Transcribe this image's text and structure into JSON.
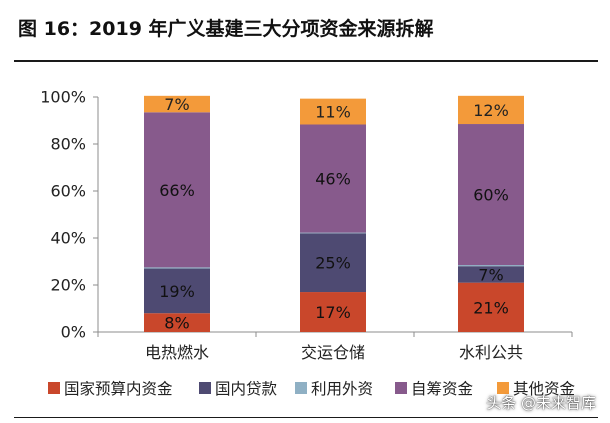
{
  "figure": {
    "title": "图 16：2019 年广义基建三大分项资金来源拆解",
    "watermark": "头条 @未来智库"
  },
  "chart_data": {
    "type": "bar",
    "stacked": true,
    "categories": [
      "电热燃水",
      "交运仓储",
      "水利公共"
    ],
    "series": [
      {
        "name": "国家预算内资金",
        "color": "#C9472B",
        "values": [
          8,
          17,
          21
        ]
      },
      {
        "name": "国内贷款",
        "color": "#4E4A72",
        "values": [
          19,
          25,
          7
        ]
      },
      {
        "name": "利用外资",
        "color": "#8FB0C4",
        "values": [
          0.5,
          0.3,
          0.5
        ]
      },
      {
        "name": "自筹资金",
        "color": "#875A8C",
        "values": [
          66,
          46,
          60
        ]
      },
      {
        "name": "其他资金",
        "color": "#F39A3A",
        "values": [
          7,
          11,
          12
        ]
      }
    ],
    "data_labels": [
      [
        "8%",
        "19%",
        "",
        "66%",
        "7%"
      ],
      [
        "17%",
        "25%",
        "",
        "46%",
        "11%"
      ],
      [
        "21%",
        "7%",
        "",
        "60%",
        "12%"
      ]
    ],
    "ylim": [
      0,
      100
    ],
    "yticks": [
      "0%",
      "20%",
      "40%",
      "60%",
      "80%",
      "100%"
    ],
    "grid": false,
    "legend_position": "bottom"
  }
}
